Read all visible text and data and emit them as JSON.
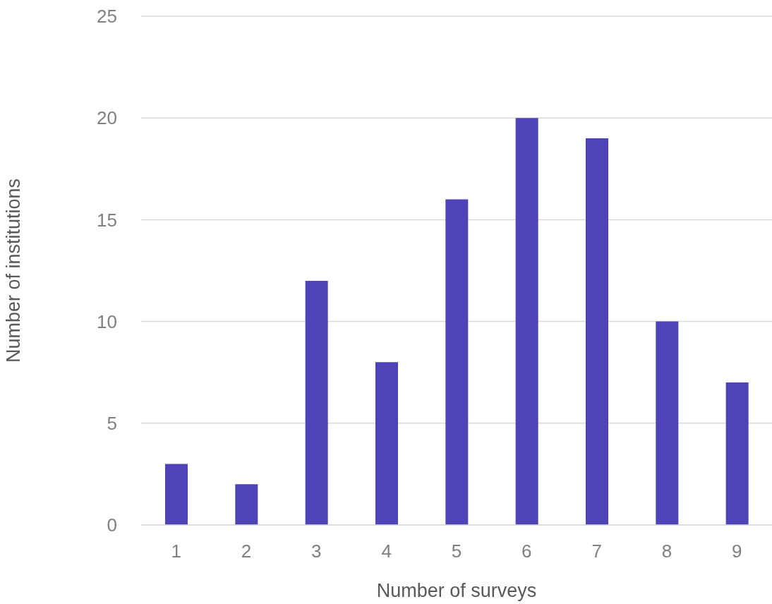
{
  "chart_data": {
    "type": "bar",
    "xlabel": "Number of surveys",
    "ylabel": "Number of institutions",
    "categories": [
      "1",
      "2",
      "3",
      "4",
      "5",
      "6",
      "7",
      "8",
      "9"
    ],
    "values": [
      3,
      2,
      12,
      8,
      16,
      20,
      19,
      10,
      7
    ],
    "color": "#4e44b8",
    "ylim": [
      0,
      25
    ],
    "yticks": [
      0,
      5,
      10,
      15,
      20,
      25
    ],
    "grid": "y",
    "legend": false
  }
}
